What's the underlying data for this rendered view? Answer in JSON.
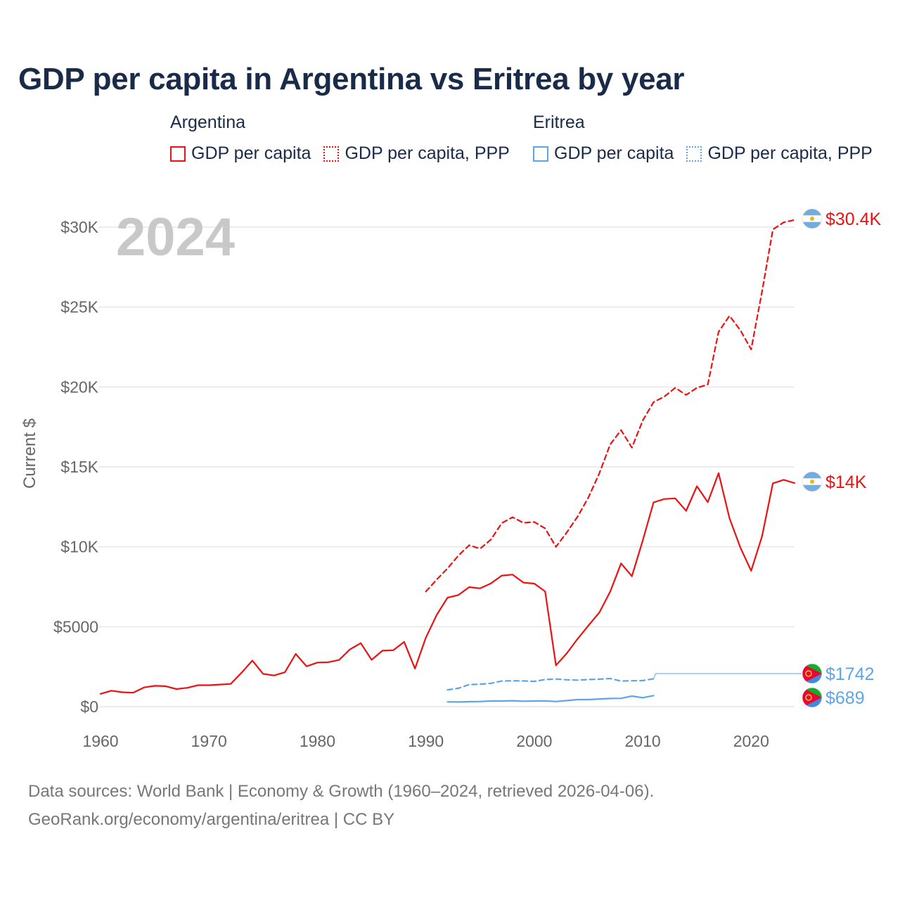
{
  "title": "GDP per capita in Argentina vs Eritrea by year",
  "legend": {
    "groups": [
      {
        "name": "Argentina",
        "color": "#ee1111",
        "items": [
          {
            "label": "GDP per capita",
            "style": "solid"
          },
          {
            "label": "GDP per capita, PPP",
            "style": "dotted"
          }
        ]
      },
      {
        "name": "Eritrea",
        "color": "#5ea5e8",
        "items": [
          {
            "label": "GDP per capita",
            "style": "solid"
          },
          {
            "label": "GDP per capita, PPP",
            "style": "dotted"
          }
        ]
      }
    ]
  },
  "year_label": "2024",
  "footer": {
    "line1": "Data sources: World Bank | Economy & Growth (1960–2024, retrieved 2026-04-06).",
    "line2": "GeoRank.org/economy/argentina/eritrea | CC BY"
  },
  "chart_data": {
    "type": "line",
    "title": "GDP per capita in Argentina vs Eritrea by year",
    "xlabel": "",
    "ylabel": "Current $",
    "xlim": [
      1960,
      2024
    ],
    "ylim": [
      0,
      30000
    ],
    "xticks": [
      {
        "value": 1960,
        "label": "1960"
      },
      {
        "value": 1970,
        "label": "1970"
      },
      {
        "value": 1980,
        "label": "1980"
      },
      {
        "value": 1990,
        "label": "1990"
      },
      {
        "value": 2000,
        "label": "2000"
      },
      {
        "value": 2010,
        "label": "2010"
      },
      {
        "value": 2020,
        "label": "2020"
      }
    ],
    "yticks": [
      {
        "value": 0,
        "label": "$0"
      },
      {
        "value": 5000,
        "label": "$5000"
      },
      {
        "value": 10000,
        "label": "$10K"
      },
      {
        "value": 15000,
        "label": "$15K"
      },
      {
        "value": 20000,
        "label": "$20K"
      },
      {
        "value": 25000,
        "label": "$25K"
      },
      {
        "value": 30000,
        "label": "$30K"
      }
    ],
    "grid": true,
    "series": [
      {
        "name": "Argentina GDP per capita",
        "country": "Argentina",
        "color": "#ee1111",
        "dash": "solid",
        "end_label": "$14K",
        "x": [
          1960,
          1961,
          1962,
          1963,
          1964,
          1965,
          1966,
          1967,
          1968,
          1969,
          1970,
          1971,
          1972,
          1973,
          1974,
          1975,
          1976,
          1977,
          1978,
          1979,
          1980,
          1981,
          1982,
          1983,
          1984,
          1985,
          1986,
          1987,
          1988,
          1989,
          1990,
          1991,
          1992,
          1993,
          1994,
          1995,
          1996,
          1997,
          1998,
          1999,
          2000,
          2001,
          2002,
          2003,
          2004,
          2005,
          2006,
          2007,
          2008,
          2009,
          2010,
          2011,
          2012,
          2013,
          2014,
          2015,
          2016,
          2017,
          2018,
          2019,
          2020,
          2021,
          2022,
          2023,
          2024
        ],
        "values": [
          800,
          1000,
          900,
          870,
          1200,
          1300,
          1280,
          1100,
          1180,
          1340,
          1340,
          1380,
          1420,
          2120,
          2880,
          2050,
          1950,
          2150,
          3300,
          2520,
          2760,
          2780,
          2920,
          3580,
          3970,
          2930,
          3500,
          3530,
          4050,
          2380,
          4320,
          5740,
          6820,
          6980,
          7480,
          7400,
          7710,
          8200,
          8260,
          7760,
          7700,
          7210,
          2580,
          3340,
          4250,
          5080,
          5890,
          7190,
          8960,
          8160,
          10390,
          12780,
          12990,
          13030,
          12250,
          13790,
          12790,
          14610,
          11790,
          9960,
          8500,
          10640,
          13970,
          14190,
          13990
        ]
      },
      {
        "name": "Argentina GDP per capita, PPP",
        "country": "Argentina",
        "color": "#ee1111",
        "dash": "dashed",
        "end_label": "$30.4K",
        "x": [
          1990,
          1991,
          1992,
          1993,
          1994,
          1995,
          1996,
          1997,
          1998,
          1999,
          2000,
          2001,
          2002,
          2003,
          2004,
          2005,
          2006,
          2007,
          2008,
          2009,
          2010,
          2011,
          2012,
          2013,
          2014,
          2015,
          2016,
          2017,
          2018,
          2019,
          2020,
          2021,
          2022,
          2023,
          2024
        ],
        "values": [
          7200,
          7950,
          8650,
          9450,
          10100,
          9880,
          10450,
          11480,
          11850,
          11500,
          11550,
          11150,
          10000,
          10900,
          11900,
          13100,
          14600,
          16400,
          17300,
          16200,
          17900,
          19050,
          19400,
          19950,
          19500,
          19950,
          20150,
          23450,
          24450,
          23550,
          22350,
          25950,
          29850,
          30300,
          30450
        ]
      },
      {
        "name": "Eritrea GDP per capita",
        "country": "Eritrea",
        "color": "#5ea5e8",
        "dash": "solid",
        "end_label": "$689",
        "x": [
          1992,
          1993,
          1994,
          1995,
          1996,
          1997,
          1998,
          1999,
          2000,
          2001,
          2002,
          2003,
          2004,
          2005,
          2006,
          2007,
          2008,
          2009,
          2010,
          2011
        ],
        "values": [
          300,
          290,
          310,
          320,
          350,
          350,
          370,
          340,
          350,
          360,
          320,
          380,
          440,
          440,
          480,
          510,
          520,
          660,
          560,
          689
        ]
      },
      {
        "name": "Eritrea GDP per capita, PPP",
        "country": "Eritrea",
        "color": "#5ea5e8",
        "dash": "dashed",
        "end_label": "$1742",
        "x": [
          1992,
          1993,
          1994,
          1995,
          1996,
          1997,
          1998,
          1999,
          2000,
          2001,
          2002,
          2003,
          2004,
          2005,
          2006,
          2007,
          2008,
          2009,
          2010,
          2011
        ],
        "values": [
          1050,
          1150,
          1380,
          1400,
          1460,
          1600,
          1620,
          1610,
          1580,
          1700,
          1730,
          1680,
          1660,
          1700,
          1720,
          1760,
          1600,
          1620,
          1630,
          1742
        ]
      }
    ]
  }
}
